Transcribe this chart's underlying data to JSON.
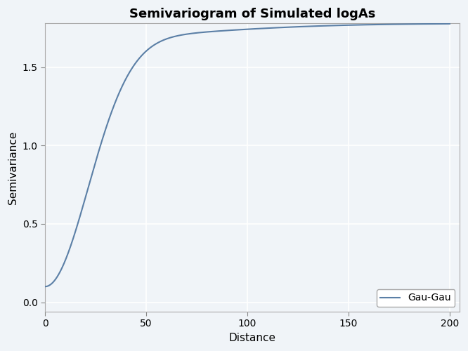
{
  "title": "Semivariogram of Simulated logAs",
  "xlabel": "Distance",
  "ylabel": "Semivariance",
  "legend_label": "Gau-Gau",
  "line_color": "#5B7FA6",
  "line_width": 1.5,
  "plot_bg_color": "#F0F4F8",
  "fig_bg_color": "#F0F4F8",
  "grid_color": "#FFFFFF",
  "grid_linewidth": 1.2,
  "nugget": 0.1,
  "sill1": 1.58,
  "range1": 30.0,
  "sill2": 0.1,
  "range2": 100.0,
  "x_min": 0,
  "x_max": 205,
  "y_min": -0.06,
  "y_max": 1.78,
  "x_ticks": [
    0,
    50,
    100,
    150,
    200
  ],
  "y_ticks": [
    0.0,
    0.5,
    1.0,
    1.5
  ],
  "title_fontsize": 13,
  "axis_label_fontsize": 11,
  "tick_fontsize": 10,
  "legend_fontsize": 10
}
